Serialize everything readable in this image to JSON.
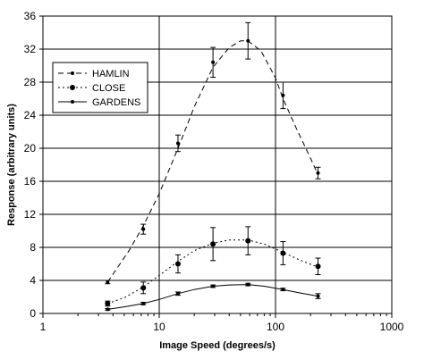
{
  "chart_data": {
    "type": "line",
    "title": "",
    "xlabel": "Image Speed (degrees/s)",
    "ylabel": "Response (arbitrary units)",
    "x_scale": "log",
    "xlim": [
      1,
      1000
    ],
    "ylim": [
      0,
      36
    ],
    "x_ticks": [
      1,
      10,
      100,
      1000
    ],
    "x_tick_labels": [
      "1",
      "10",
      "100",
      "1000"
    ],
    "y_ticks": [
      0,
      4,
      8,
      12,
      16,
      20,
      24,
      28,
      32,
      36
    ],
    "y_tick_labels": [
      "0",
      "4",
      "8",
      "12",
      "16",
      "20",
      "24",
      "28",
      "32",
      "36"
    ],
    "grid": "horizontal and vertical major lines",
    "legend_position": "top-left",
    "series": [
      {
        "name": "HAMLIN",
        "line_style": "dashed",
        "marker": "small dot",
        "points": [
          {
            "x": 3.6,
            "y": 3.8,
            "err": 0.2
          },
          {
            "x": 7.3,
            "y": 10.2,
            "err": 0.6
          },
          {
            "x": 14.5,
            "y": 20.6,
            "err": 1.0
          },
          {
            "x": 29,
            "y": 30.4,
            "err": 1.8
          },
          {
            "x": 58,
            "y": 33.0,
            "err": 2.2
          },
          {
            "x": 116,
            "y": 26.4,
            "err": 1.6
          },
          {
            "x": 232,
            "y": 17.0,
            "err": 0.7
          }
        ],
        "fit_curve": [
          [
            3.6,
            3.8
          ],
          [
            5.5,
            7.6
          ],
          [
            7.3,
            10.6
          ],
          [
            10,
            14.5
          ],
          [
            14.5,
            20.0
          ],
          [
            20,
            25.0
          ],
          [
            29,
            29.8
          ],
          [
            40,
            32.2
          ],
          [
            50,
            33.0
          ],
          [
            58,
            33.0
          ],
          [
            75,
            31.8
          ],
          [
            100,
            28.5
          ],
          [
            116,
            26.0
          ],
          [
            150,
            22.5
          ],
          [
            200,
            18.8
          ],
          [
            232,
            16.8
          ]
        ]
      },
      {
        "name": "CLOSE",
        "line_style": "dotted",
        "marker": "large dot",
        "points": [
          {
            "x": 3.6,
            "y": 1.2,
            "err": 0.3
          },
          {
            "x": 7.3,
            "y": 3.1,
            "err": 0.7
          },
          {
            "x": 14.5,
            "y": 6.0,
            "err": 1.1
          },
          {
            "x": 29,
            "y": 8.4,
            "err": 2.0
          },
          {
            "x": 58,
            "y": 8.8,
            "err": 1.7
          },
          {
            "x": 116,
            "y": 7.3,
            "err": 1.4
          },
          {
            "x": 232,
            "y": 5.7,
            "err": 1.0
          }
        ],
        "fit_curve": [
          [
            3.6,
            1.2
          ],
          [
            5,
            1.9
          ],
          [
            7.3,
            3.2
          ],
          [
            10,
            4.6
          ],
          [
            14.5,
            6.3
          ],
          [
            20,
            7.6
          ],
          [
            29,
            8.5
          ],
          [
            40,
            8.9
          ],
          [
            58,
            8.9
          ],
          [
            80,
            8.4
          ],
          [
            116,
            7.4
          ],
          [
            160,
            6.5
          ],
          [
            232,
            5.6
          ]
        ]
      },
      {
        "name": "GARDENS",
        "line_style": "solid",
        "marker": "small dot",
        "points": [
          {
            "x": 3.6,
            "y": 0.5,
            "err": 0.1
          },
          {
            "x": 7.3,
            "y": 1.2,
            "err": 0.15
          },
          {
            "x": 14.5,
            "y": 2.4,
            "err": 0.2
          },
          {
            "x": 29,
            "y": 3.3,
            "err": 0.15
          },
          {
            "x": 58,
            "y": 3.5,
            "err": 0.15
          },
          {
            "x": 116,
            "y": 2.9,
            "err": 0.15
          },
          {
            "x": 232,
            "y": 2.1,
            "err": 0.3
          }
        ],
        "fit_curve": [
          [
            3.6,
            0.5
          ],
          [
            5,
            0.8
          ],
          [
            7.3,
            1.2
          ],
          [
            10,
            1.7
          ],
          [
            14.5,
            2.4
          ],
          [
            20,
            2.9
          ],
          [
            29,
            3.3
          ],
          [
            40,
            3.45
          ],
          [
            58,
            3.5
          ],
          [
            80,
            3.3
          ],
          [
            116,
            2.9
          ],
          [
            160,
            2.5
          ],
          [
            232,
            2.1
          ]
        ]
      }
    ]
  }
}
